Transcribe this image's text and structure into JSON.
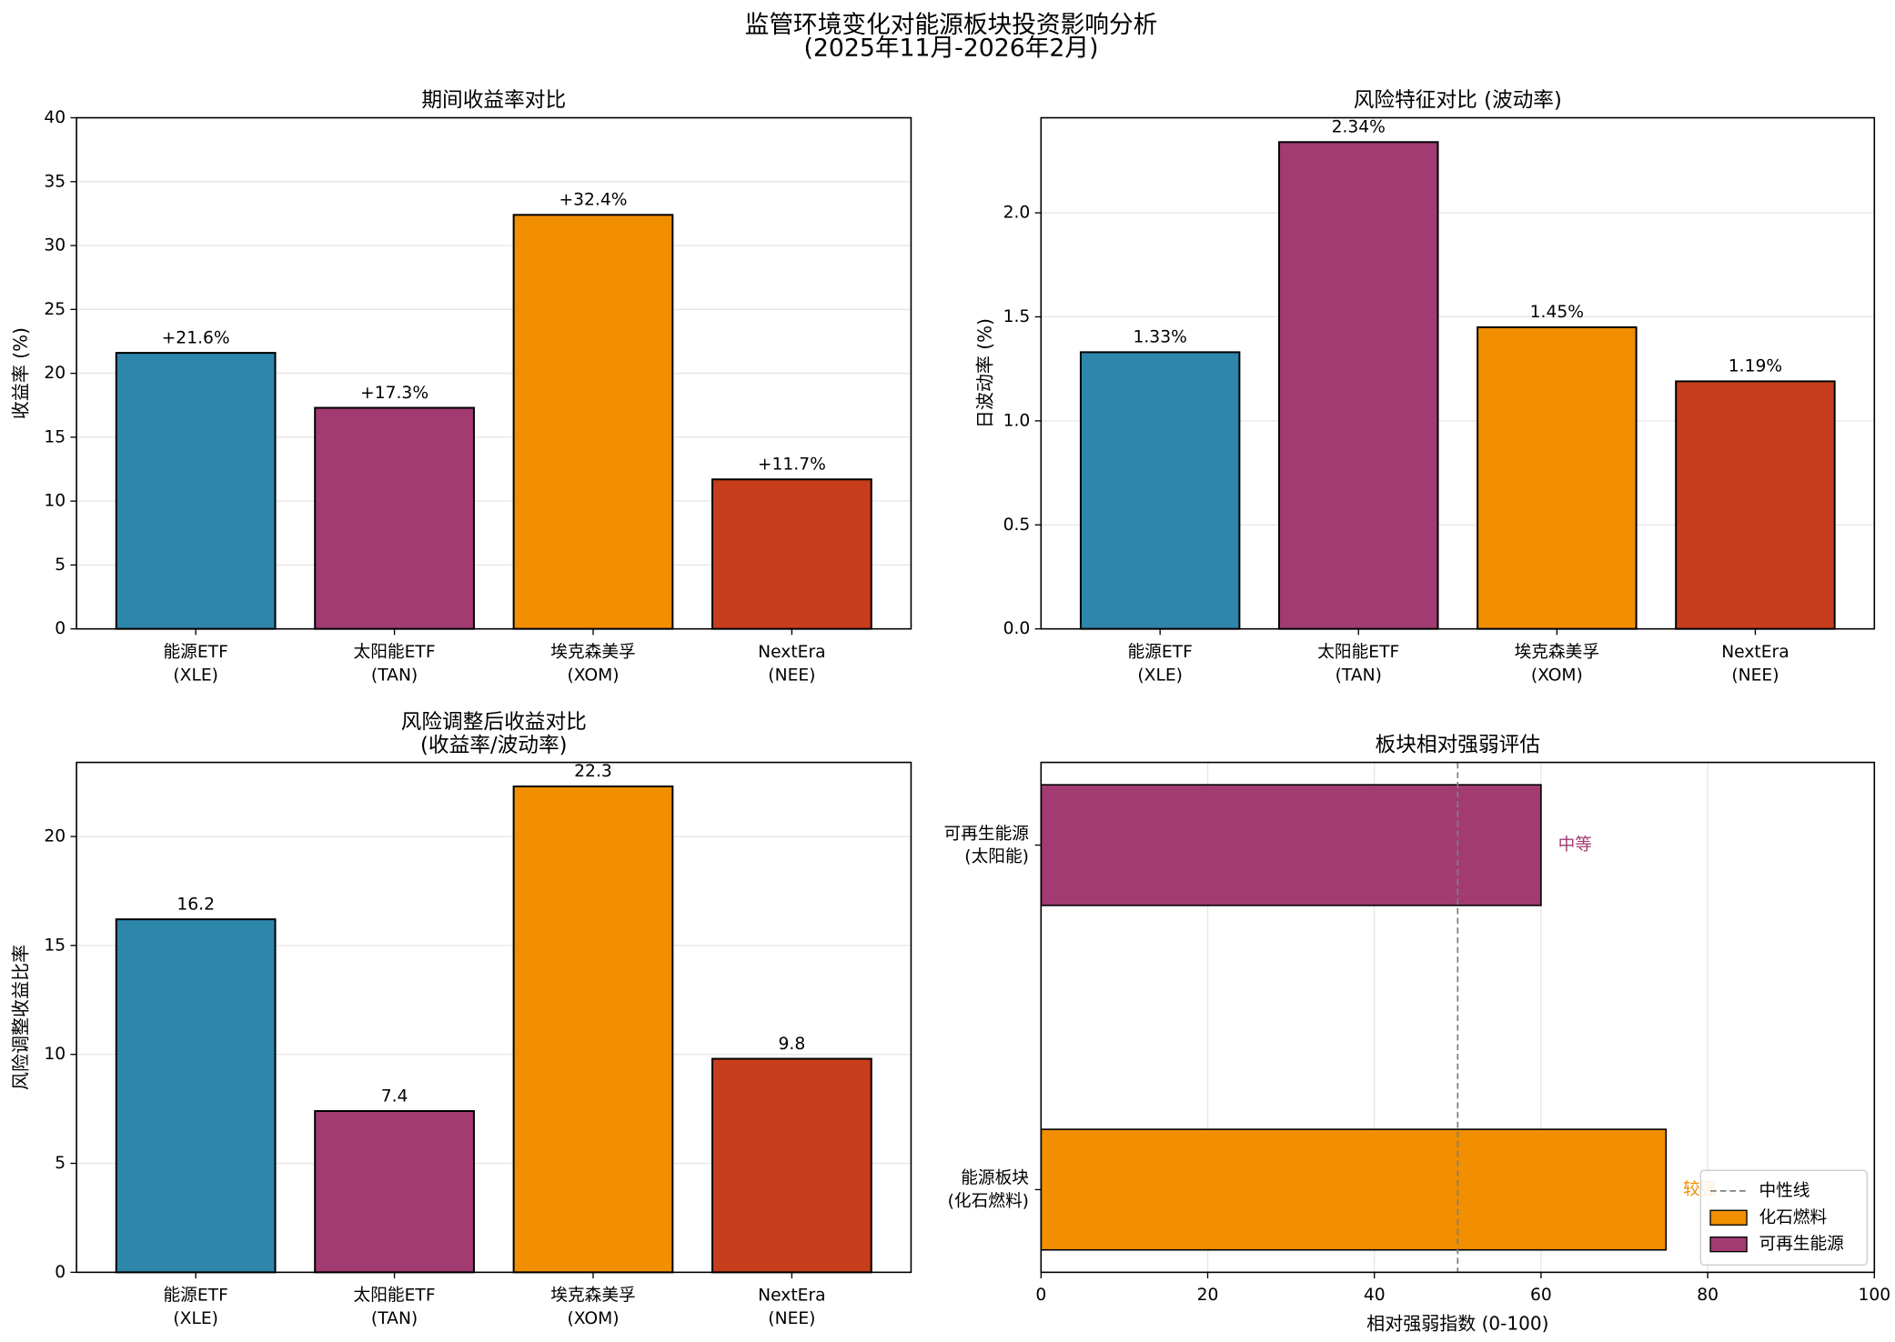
{
  "title": "监管环境变化对能源板块投资影响分析\n(2025年11月-2026年2月)",
  "chart_data": [
    {
      "type": "bar",
      "title": "期间收益率对比",
      "ylabel": "收益率 (%)",
      "categories": [
        "能源ETF\n(XLE)",
        "太阳能ETF\n(TAN)",
        "埃克森美孚\n(XOM)",
        "NextEra\n(NEE)"
      ],
      "values": [
        21.6,
        17.3,
        32.4,
        11.7
      ],
      "value_labels": [
        "+21.6%",
        "+17.3%",
        "+32.4%",
        "+11.7%"
      ],
      "colors": [
        "#2e86ab",
        "#a23b72",
        "#f18f01",
        "#c73e1d"
      ],
      "ylim": [
        0,
        40
      ],
      "yticks": [
        0,
        5,
        10,
        15,
        20,
        25,
        30,
        35,
        40
      ],
      "grid": true
    },
    {
      "type": "bar",
      "title": "风险特征对比 (波动率)",
      "ylabel": "日波动率 (%)",
      "categories": [
        "能源ETF\n(XLE)",
        "太阳能ETF\n(TAN)",
        "埃克森美孚\n(XOM)",
        "NextEra\n(NEE)"
      ],
      "values": [
        1.33,
        2.34,
        1.45,
        1.19
      ],
      "value_labels": [
        "1.33%",
        "2.34%",
        "1.45%",
        "1.19%"
      ],
      "colors": [
        "#2e86ab",
        "#a23b72",
        "#f18f01",
        "#c73e1d"
      ],
      "ylim": [
        0,
        2.457
      ],
      "yticks": [
        {
          "value": 0,
          "label": "0.0"
        },
        0.5,
        {
          "value": 1,
          "label": "1.0"
        },
        1.5,
        {
          "value": 2,
          "label": "2.0"
        }
      ],
      "grid": true
    },
    {
      "type": "bar",
      "title": "风险调整后收益对比\n(收益率/波动率)",
      "ylabel": "风险调整收益比率",
      "categories": [
        "能源ETF\n(XLE)",
        "太阳能ETF\n(TAN)",
        "埃克森美孚\n(XOM)",
        "NextEra\n(NEE)"
      ],
      "values": [
        16.2,
        7.4,
        22.3,
        9.8
      ],
      "colors": [
        "#2e86ab",
        "#a23b72",
        "#f18f01",
        "#c73e1d"
      ],
      "ylim": [
        0,
        23.4
      ],
      "yticks": [
        0,
        5,
        10,
        15,
        20
      ],
      "grid": true
    },
    {
      "type": "barh",
      "title": "板块相对强弱评估",
      "xlabel": "相对强弱指数 (0-100)",
      "categories": [
        "能源板块\n(化石燃料)",
        "可再生能源\n(太阳能)"
      ],
      "series": [
        {
          "name": "化石燃料",
          "color": "#f18f01",
          "values": [
            75,
            null
          ]
        },
        {
          "name": "可再生能源",
          "color": "#a23b72",
          "values": [
            null,
            60
          ]
        }
      ],
      "annotations": [
        {
          "text": "较强",
          "color": "#f18f01"
        },
        {
          "text": "中等",
          "color": "#a23b72"
        }
      ],
      "reference_line": {
        "value": 50,
        "name": "中性线",
        "color": "#808080"
      },
      "xlim": [
        0,
        100
      ],
      "xticks": [
        0,
        20,
        40,
        60,
        80,
        100
      ],
      "grid": true,
      "legend": "lower right"
    }
  ]
}
